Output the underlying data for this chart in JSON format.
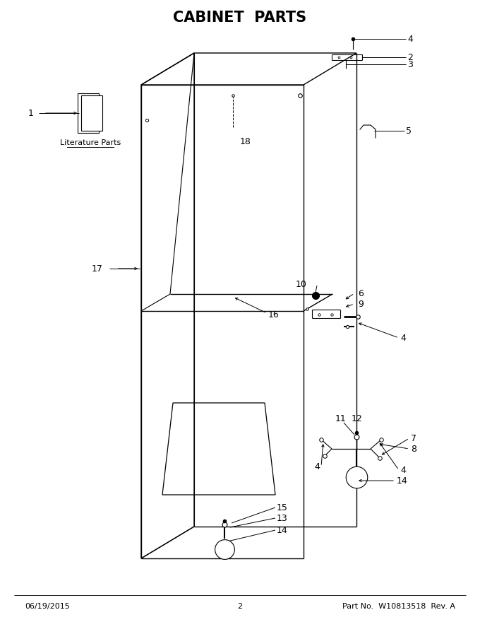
{
  "title": "CABINET  PARTS",
  "footer_left": "06/19/2015",
  "footer_center": "2",
  "footer_right": "Part No.  W10813518  Rev. A",
  "lit_parts_label": "Literature Parts",
  "bg_color": "#ffffff",
  "line_color": "#000000",
  "title_fontsize": 15,
  "body_fontsize": 9,
  "label_fontsize": 9
}
